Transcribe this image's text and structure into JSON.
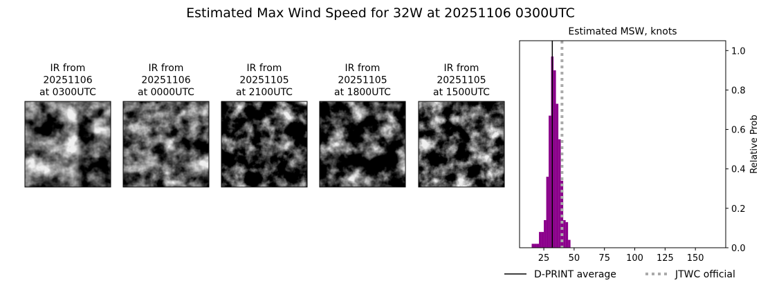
{
  "title": "Estimated Max Wind Speed for 32W at 20251106 0300UTC",
  "ir_images": [
    {
      "lines": [
        "IR from",
        "20251106",
        "at 0300UTC"
      ]
    },
    {
      "lines": [
        "IR from",
        "20251106",
        "at 0000UTC"
      ]
    },
    {
      "lines": [
        "IR from",
        "20251105",
        "at 2100UTC"
      ]
    },
    {
      "lines": [
        "IR from",
        "20251105",
        "at 1800UTC"
      ]
    },
    {
      "lines": [
        "IR from",
        "20251105",
        "at 1500UTC"
      ]
    }
  ],
  "chart_data": {
    "type": "histogram",
    "title": "Estimated MSW, knots",
    "y_label": "Relative Prob",
    "bins": [
      15,
      17,
      19,
      21,
      23,
      25,
      27,
      29,
      31,
      33,
      35,
      37,
      39,
      41,
      43,
      45,
      47
    ],
    "values": [
      0.02,
      0.02,
      0.02,
      0.08,
      0.08,
      0.14,
      0.36,
      0.67,
      0.97,
      0.9,
      0.73,
      0.55,
      0.34,
      0.14,
      0.13,
      0.04
    ],
    "color": "#8b008b",
    "xlim": [
      5,
      175
    ],
    "xticks": [
      25,
      50,
      75,
      100,
      125,
      150
    ],
    "ylim": [
      0,
      1.05
    ],
    "yticks": [
      {
        "value": 0,
        "label": "0.0"
      },
      {
        "value": 0.2,
        "label": "0.2"
      },
      {
        "value": 0.4,
        "label": "0.4"
      },
      {
        "value": 0.6,
        "label": "0.6"
      },
      {
        "value": 0.8,
        "label": "0.8"
      },
      {
        "value": 1.0,
        "label": "1.0"
      }
    ],
    "reference_lines": [
      {
        "name": "D-PRINT average",
        "value": 32,
        "color": "#000000",
        "style": "solid"
      },
      {
        "name": "JTWC official",
        "value": 40,
        "color": "#aaaaaa",
        "style": "dotted"
      }
    ]
  }
}
